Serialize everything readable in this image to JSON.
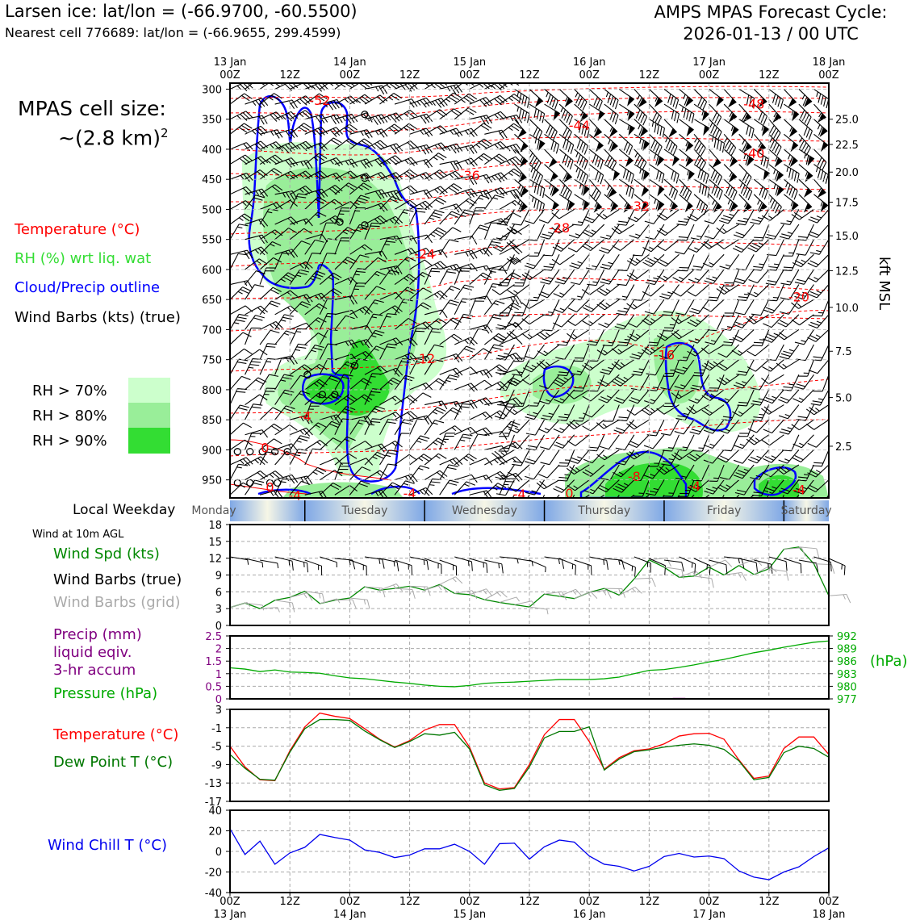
{
  "header": {
    "title_left": "Larsen ice: lat/lon = (-66.9700, -60.5500)",
    "subtitle_left": "Nearest cell 776689: lat/lon = (-66.9655, 299.4599)",
    "title_right_line1": "AMPS MPAS Forecast Cycle:",
    "title_right_line2": "2026-01-13 / 00 UTC"
  },
  "legend": {
    "cell_size_line1": "MPAS cell size:",
    "cell_size_line2": "~(2.8 km)",
    "cell_size_sup": "2",
    "temperature": "Temperature (°C)",
    "rh": "RH (%) wrt liq. wat",
    "cloud": "Cloud/Precip outline",
    "barbs": "Wind Barbs (kts) (true)",
    "rh70": "RH > 70%",
    "rh80": "RH > 80%",
    "rh90": "RH > 90%",
    "local_weekday": "Local Weekday",
    "wind10m": "Wind at 10m AGL",
    "wind_spd": "Wind Spd (kts)",
    "wind_barbs_true": "Wind Barbs (true)",
    "wind_barbs_grid": "Wind Barbs (grid)",
    "precip_1": "Precip (mm)",
    "precip_2": "liquid eqiv.",
    "precip_3": "3-hr accum",
    "pressure": "Pressure (hPa)",
    "pressure_unit": "(hPa)",
    "temp2": "Temperature (°C)",
    "dewpoint": "Dew Point T (°C)",
    "windchill": "Wind Chill T (°C)",
    "kft": "kft MSL"
  },
  "colors": {
    "temperature": "#ff0000",
    "rh": "#33dd33",
    "cloud": "#0000ff",
    "wind": "#000000",
    "wind_grid": "#aaaaaa",
    "precip": "#800080",
    "pressure": "#00aa00",
    "dewpoint": "#007700",
    "windchill": "#0000ee",
    "rh70": "#ccffcc",
    "rh80": "#99ee99",
    "rh90": "#33dd33"
  },
  "time_axis": {
    "top_labels": [
      {
        "top": "13 Jan",
        "bottom": "00Z"
      },
      {
        "top": "",
        "bottom": "12Z"
      },
      {
        "top": "14 Jan",
        "bottom": "00Z"
      },
      {
        "top": "",
        "bottom": "12Z"
      },
      {
        "top": "15 Jan",
        "bottom": "00Z"
      },
      {
        "top": "",
        "bottom": "12Z"
      },
      {
        "top": "16 Jan",
        "bottom": "00Z"
      },
      {
        "top": "",
        "bottom": "12Z"
      },
      {
        "top": "17 Jan",
        "bottom": "00Z"
      },
      {
        "top": "",
        "bottom": "12Z"
      },
      {
        "top": "18 Jan",
        "bottom": "00Z"
      }
    ],
    "bottom_labels": [
      {
        "top": "00Z",
        "bottom": "13 Jan"
      },
      {
        "top": "12Z",
        "bottom": ""
      },
      {
        "top": "00Z",
        "bottom": "14 Jan"
      },
      {
        "top": "12Z",
        "bottom": ""
      },
      {
        "top": "00Z",
        "bottom": "15 Jan"
      },
      {
        "top": "12Z",
        "bottom": ""
      },
      {
        "top": "00Z",
        "bottom": "16 Jan"
      },
      {
        "top": "12Z",
        "bottom": ""
      },
      {
        "top": "00Z",
        "bottom": "17 Jan"
      },
      {
        "top": "12Z",
        "bottom": ""
      },
      {
        "top": "00Z",
        "bottom": "18 Jan"
      }
    ]
  },
  "weekdays": [
    "Monday",
    "Tuesday",
    "Wednesday",
    "Thursday",
    "Friday",
    "Saturday"
  ],
  "chart_data": [
    {
      "type": "heatmap",
      "name": "time-height cross section",
      "x_hours": [
        0,
        120
      ],
      "pressure_ticks": [
        300,
        350,
        400,
        450,
        500,
        550,
        600,
        650,
        700,
        750,
        800,
        850,
        900,
        950
      ],
      "pressure_range": [
        290,
        980
      ],
      "kft_ticks": [
        {
          "label": "25.0",
          "p": 350
        },
        {
          "label": "22.5",
          "p": 392
        },
        {
          "label": "20.0",
          "p": 438
        },
        {
          "label": "17.5",
          "p": 488
        },
        {
          "label": "15.0",
          "p": 544
        },
        {
          "label": "12.5",
          "p": 602
        },
        {
          "label": "10.0",
          "p": 663
        },
        {
          "label": "7.5",
          "p": 736
        },
        {
          "label": "5.0",
          "p": 813
        },
        {
          "label": "2.5",
          "p": 894
        }
      ],
      "temperature_labels": [
        {
          "label": "-52",
          "h": 18,
          "p": 318
        },
        {
          "label": "-48",
          "h": 105,
          "p": 324
        },
        {
          "label": "-44",
          "h": 70,
          "p": 360
        },
        {
          "label": "-40",
          "h": 105,
          "p": 406
        },
        {
          "label": "-36",
          "h": 48,
          "p": 443
        },
        {
          "label": "-32",
          "h": 82,
          "p": 494
        },
        {
          "label": "-28",
          "h": 66,
          "p": 530
        },
        {
          "label": "-24",
          "h": 39,
          "p": 574
        },
        {
          "label": "-20",
          "h": 114,
          "p": 645
        },
        {
          "label": "-16",
          "h": 87,
          "p": 742
        },
        {
          "label": "-12",
          "h": 39,
          "p": 748
        },
        {
          "label": "-8",
          "h": 81,
          "p": 944
        },
        {
          "label": "-4",
          "h": 15,
          "p": 844
        },
        {
          "label": "-4",
          "h": 13,
          "p": 975
        },
        {
          "label": "-4",
          "h": 36,
          "p": 972
        },
        {
          "label": "-4",
          "h": 58,
          "p": 973
        },
        {
          "label": "-4",
          "h": 93,
          "p": 960
        },
        {
          "label": "-4",
          "h": 114,
          "p": 966
        },
        {
          "label": "0",
          "h": 7,
          "p": 896
        },
        {
          "label": "0",
          "h": 8,
          "p": 962
        },
        {
          "label": "0",
          "h": 68,
          "p": 972
        }
      ]
    },
    {
      "type": "line",
      "name": "wind speed 10m",
      "ylim": [
        0,
        18
      ],
      "yticks": [
        0,
        3,
        6,
        9,
        12,
        15,
        18
      ],
      "x": [
        0,
        3,
        6,
        9,
        12,
        15,
        18,
        21,
        24,
        27,
        30,
        33,
        36,
        39,
        42,
        45,
        48,
        51,
        54,
        57,
        60,
        63,
        66,
        69,
        72,
        75,
        78,
        81,
        84,
        87,
        90,
        93,
        96,
        99,
        102,
        105,
        108,
        111,
        114,
        117,
        120
      ],
      "values": [
        3.2,
        4.0,
        3.0,
        4.5,
        5.0,
        6.1,
        3.9,
        4.5,
        4.9,
        6.9,
        6.3,
        6.6,
        7.0,
        6.3,
        7.3,
        5.7,
        5.5,
        4.6,
        4.1,
        3.7,
        3.3,
        5.6,
        5.2,
        4.8,
        5.9,
        6.6,
        5.4,
        8.3,
        11.7,
        10.4,
        8.6,
        8.8,
        10.4,
        9.0,
        10.7,
        9.1,
        10.1,
        13.6,
        14.0,
        11.0,
        5.3
      ]
    },
    {
      "type": "line",
      "name": "precip and pressure",
      "ylim_precip": [
        0,
        2.5
      ],
      "precip_ticks": [
        0,
        0.5,
        1.0,
        1.5,
        2.0,
        2.5
      ],
      "ylim_pressure": [
        977,
        992
      ],
      "pressure_ticks": [
        977,
        980,
        983,
        986,
        989,
        992
      ],
      "x": [
        0,
        3,
        6,
        9,
        12,
        15,
        18,
        21,
        24,
        27,
        30,
        33,
        36,
        39,
        42,
        45,
        48,
        51,
        54,
        57,
        60,
        63,
        66,
        69,
        72,
        75,
        78,
        81,
        84,
        87,
        90,
        93,
        96,
        99,
        102,
        105,
        108,
        111,
        114,
        117,
        120
      ],
      "pressure": [
        984.4,
        984.1,
        983.5,
        983.9,
        983.4,
        983.3,
        983.1,
        982.5,
        982.0,
        981.8,
        981.4,
        981.0,
        980.7,
        980.3,
        980.0,
        979.9,
        980.2,
        980.7,
        980.9,
        981.0,
        981.2,
        981.4,
        981.6,
        981.6,
        981.6,
        981.8,
        982.2,
        983.0,
        983.8,
        984.0,
        984.5,
        985.1,
        985.8,
        986.4,
        987.2,
        988.0,
        988.6,
        989.3,
        989.9,
        990.5,
        990.8
      ],
      "precip": [
        0,
        0,
        0,
        0,
        0,
        0,
        0,
        0,
        0,
        0,
        0,
        0,
        0,
        0,
        0,
        0,
        0,
        0,
        0,
        0,
        0,
        0,
        0,
        0,
        0,
        0,
        0,
        0,
        0,
        0,
        0.04,
        0,
        0,
        0,
        0,
        0,
        0,
        0,
        0,
        0,
        0
      ]
    },
    {
      "type": "line",
      "name": "temperature and dew point",
      "ylim": [
        -17,
        3
      ],
      "yticks": [
        -17,
        -13,
        -9,
        -5,
        -1,
        3
      ],
      "x": [
        0,
        3,
        6,
        9,
        12,
        15,
        18,
        21,
        24,
        27,
        30,
        33,
        36,
        39,
        42,
        45,
        48,
        51,
        54,
        57,
        60,
        63,
        66,
        69,
        72,
        75,
        78,
        81,
        84,
        87,
        90,
        93,
        96,
        99,
        102,
        105,
        108,
        111,
        114,
        117,
        120
      ],
      "temperature": [
        -5.0,
        -9.5,
        -12.3,
        -12.5,
        -6.0,
        -0.8,
        2.2,
        1.5,
        1.0,
        -1.2,
        -3.5,
        -5.2,
        -3.8,
        -1.5,
        -0.3,
        -0.3,
        -5.2,
        -13.0,
        -14.3,
        -14.0,
        -9.0,
        -2.5,
        0.8,
        0.8,
        -4.0,
        -10.0,
        -7.5,
        -6.0,
        -5.6,
        -4.5,
        -2.8,
        -2.3,
        -2.2,
        -3.5,
        -8.0,
        -12.0,
        -11.5,
        -5.5,
        -3.0,
        -3.0,
        -6.8
      ],
      "dewpoint": [
        -6.8,
        -9.8,
        -12.2,
        -12.4,
        -6.3,
        -1.2,
        0.8,
        0.8,
        0.6,
        -1.7,
        -3.6,
        -5.3,
        -4.0,
        -2.3,
        -2.6,
        -2.0,
        -5.6,
        -13.4,
        -14.6,
        -14.2,
        -9.5,
        -3.2,
        -1.8,
        -1.8,
        -0.8,
        -10.2,
        -7.8,
        -6.2,
        -5.8,
        -5.2,
        -4.8,
        -4.5,
        -4.8,
        -5.7,
        -8.2,
        -12.3,
        -11.8,
        -6.4,
        -5.0,
        -5.5,
        -7.4
      ]
    },
    {
      "type": "line",
      "name": "wind chill",
      "ylim": [
        -40,
        40
      ],
      "yticks": [
        -40,
        -20,
        0,
        20,
        40
      ],
      "x": [
        0,
        3,
        6,
        9,
        12,
        15,
        18,
        21,
        24,
        27,
        30,
        33,
        36,
        39,
        42,
        45,
        48,
        51,
        54,
        57,
        60,
        63,
        66,
        69,
        72,
        75,
        78,
        81,
        84,
        87,
        90,
        93,
        96,
        99,
        102,
        105,
        108,
        111,
        114,
        117,
        120
      ],
      "values": [
        22.0,
        -3.0,
        10.0,
        -12.5,
        -1.5,
        4.0,
        16.5,
        13.5,
        11.0,
        1.5,
        -1.0,
        -6.0,
        -3.5,
        2.5,
        2.5,
        7.0,
        0.0,
        -12.5,
        7.5,
        8.0,
        -7.5,
        4.5,
        11.0,
        9.0,
        -4.5,
        -12.5,
        -14.5,
        -19.0,
        -14.5,
        -5.0,
        -2.0,
        -5.5,
        -4.5,
        -7.0,
        -19.0,
        -25.0,
        -27.5,
        -20.0,
        -15.0,
        -5.0,
        3.5
      ]
    }
  ]
}
